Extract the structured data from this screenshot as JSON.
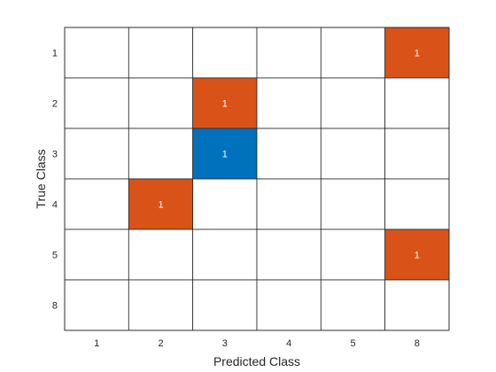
{
  "chart_data": {
    "type": "heatmap",
    "title": "",
    "xlabel": "Predicted Class",
    "ylabel": "True Class",
    "x_categories": [
      "1",
      "2",
      "3",
      "4",
      "5",
      "8"
    ],
    "y_categories": [
      "1",
      "2",
      "3",
      "4",
      "5",
      "8"
    ],
    "matrix": [
      [
        0,
        0,
        0,
        0,
        0,
        1
      ],
      [
        0,
        0,
        1,
        0,
        0,
        0
      ],
      [
        0,
        0,
        1,
        0,
        0,
        0
      ],
      [
        0,
        1,
        0,
        0,
        0,
        0
      ],
      [
        0,
        0,
        0,
        0,
        0,
        1
      ],
      [
        0,
        0,
        0,
        0,
        0,
        0
      ]
    ],
    "grid": true,
    "colors": {
      "diagonal": "#0072BD",
      "off_diagonal": "#D95319",
      "empty": "#FFFFFF",
      "grid_line": "#262626",
      "text_on_color": "#FFFFFF",
      "axis_text": "#262626"
    }
  }
}
